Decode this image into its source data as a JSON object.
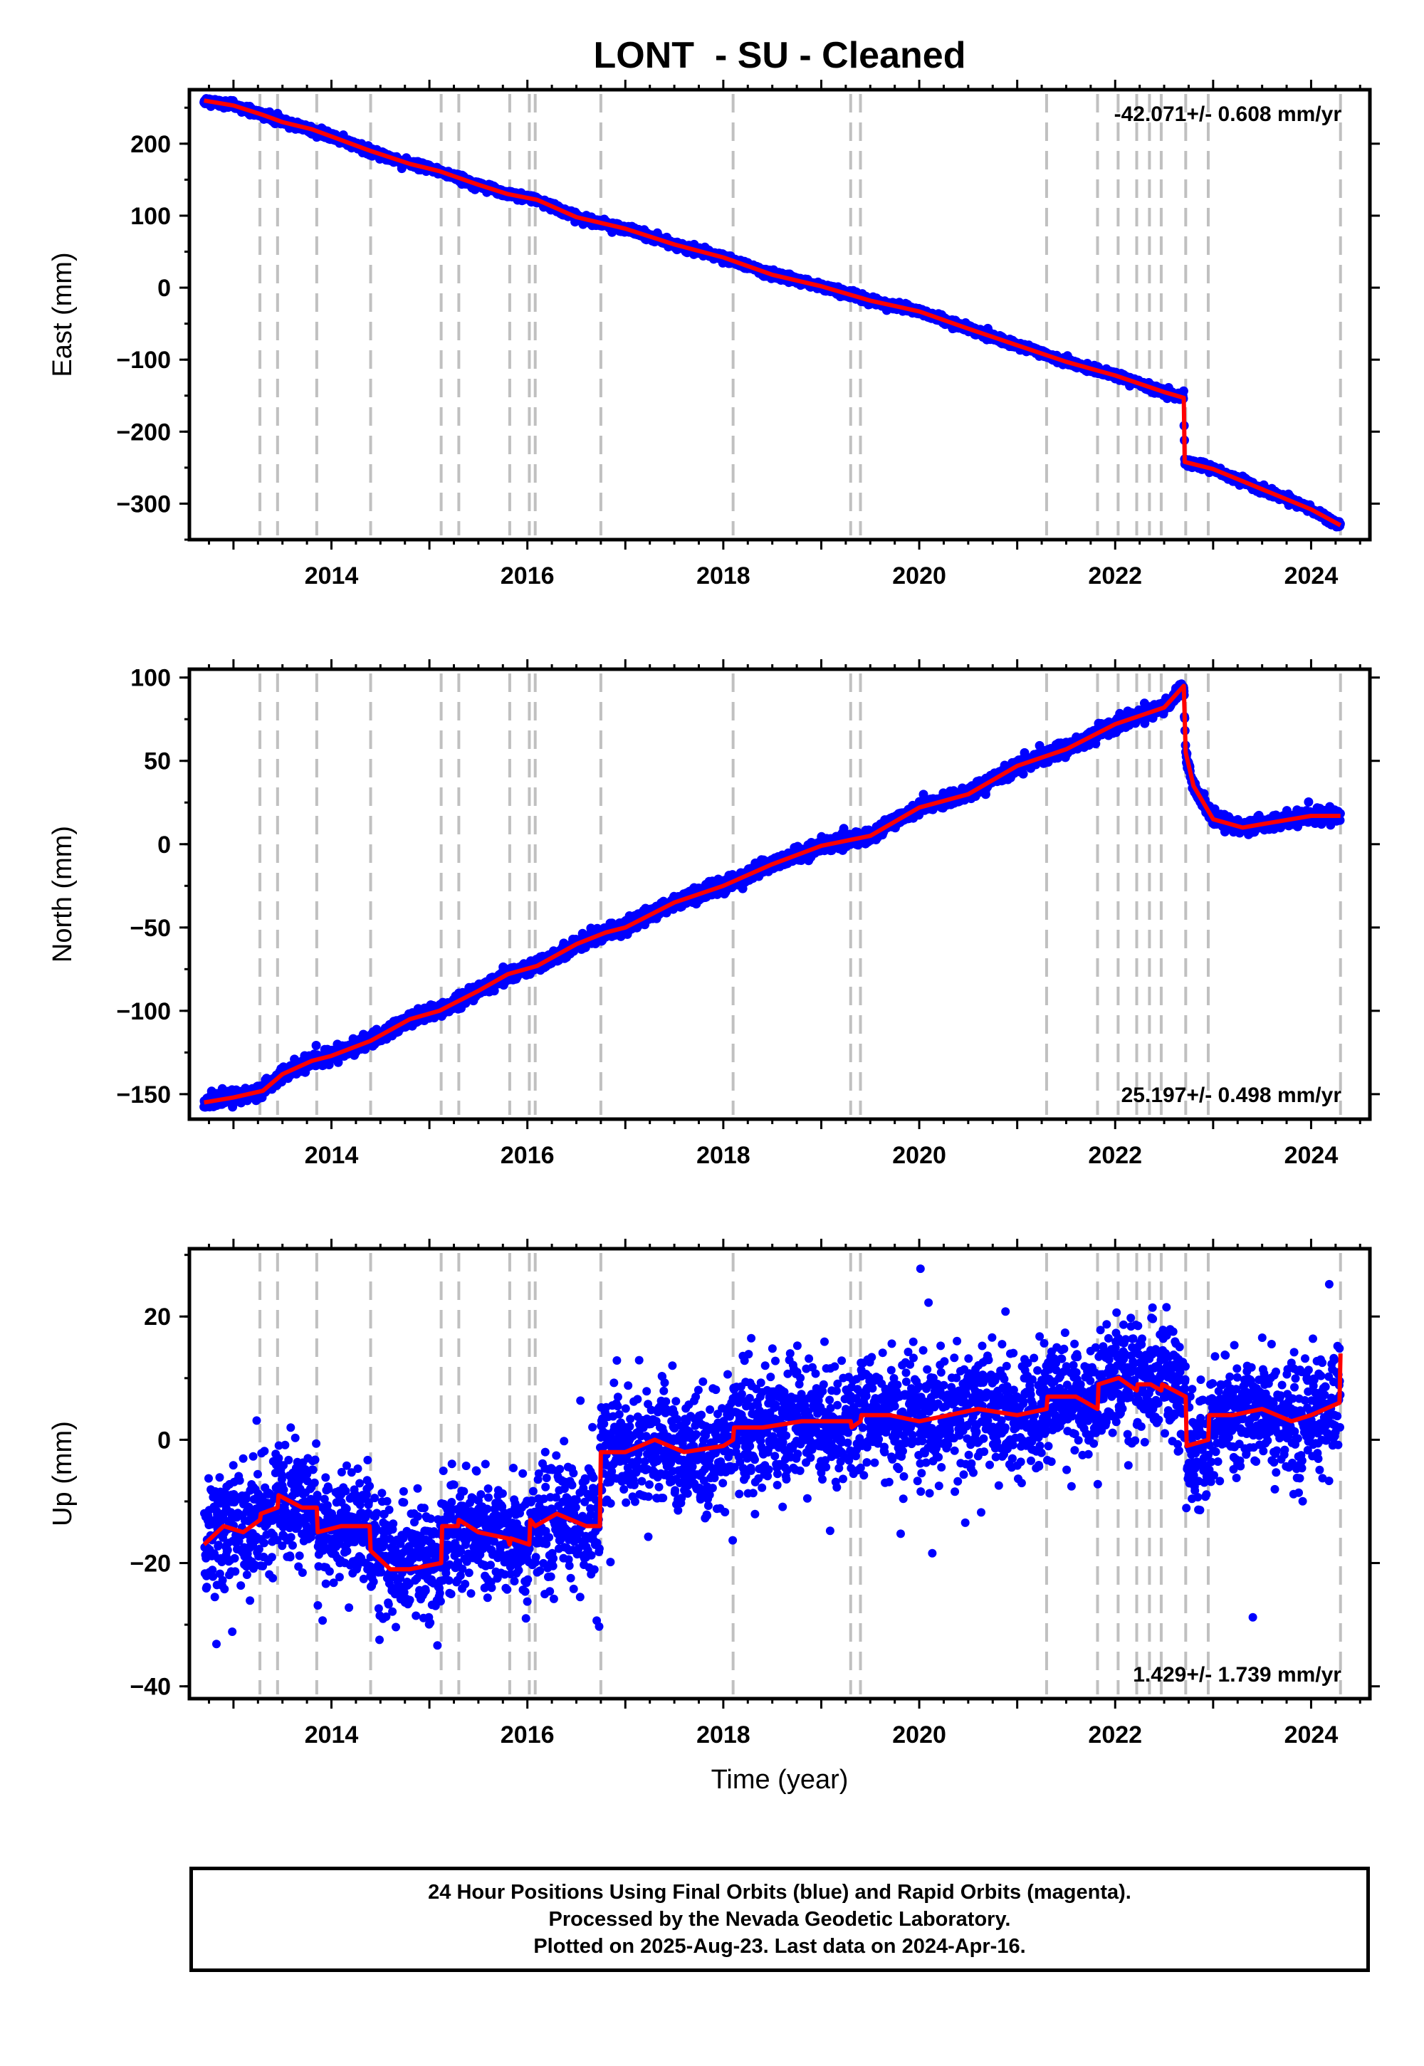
{
  "page": {
    "title": "LONT  - SU - Cleaned",
    "footer": [
      "24 Hour Positions Using Final Orbits (blue) and Rapid Orbits (magenta).",
      "Processed by the Nevada Geodetic Laboratory.",
      "Plotted on 2025-Aug-23. Last data on 2024-Apr-16."
    ]
  },
  "colors": {
    "data_points": "#0000ff",
    "model_line": "#ff0000",
    "event_lines": "#c0c0c0",
    "frame": "#000000"
  },
  "chart_data": [
    {
      "type": "scatter",
      "title": "LONT  - SU - Cleaned",
      "xlabel": "",
      "ylabel": "East (mm)",
      "xlim": [
        2012.55,
        2024.6
      ],
      "ylim": [
        -350,
        275
      ],
      "x_ticks": [
        2014,
        2016,
        2018,
        2020,
        2022,
        2024
      ],
      "y_ticks": [
        200,
        100,
        0,
        -100,
        -200,
        -300
      ],
      "y_tick_labels": [
        "200",
        "100",
        "0",
        "−100",
        "−200",
        "−300"
      ],
      "rate_label": "-42.071+/- 0.608 mm/yr",
      "rate_position": "top-right",
      "event_lines_x": [
        2013.27,
        2013.45,
        2013.85,
        2014.4,
        2015.12,
        2015.3,
        2015.82,
        2016.02,
        2016.08,
        2016.75,
        2018.1,
        2019.3,
        2019.4,
        2021.3,
        2021.82,
        2022.03,
        2022.22,
        2022.35,
        2022.47,
        2022.72,
        2022.95,
        2024.3
      ],
      "series": [
        {
          "kind": "daily_positions",
          "noise_mm": 2.5,
          "x": [
            2012.7,
            2013.0,
            2013.3,
            2013.5,
            2013.8,
            2014.0,
            2014.4,
            2014.8,
            2015.1,
            2015.5,
            2015.8,
            2016.1,
            2016.5,
            2017.0,
            2017.5,
            2018.0,
            2018.5,
            2019.0,
            2019.5,
            2020.0,
            2020.5,
            2021.0,
            2021.5,
            2022.0,
            2022.5,
            2022.7,
            2022.71,
            2023.0,
            2023.5,
            2024.0,
            2024.3
          ],
          "y": [
            260,
            253,
            240,
            230,
            220,
            210,
            190,
            172,
            162,
            143,
            130,
            122,
            98,
            82,
            60,
            42,
            18,
            2,
            -18,
            -33,
            -57,
            -80,
            -103,
            -122,
            -145,
            -153,
            -242,
            -252,
            -280,
            -308,
            -330
          ]
        },
        {
          "kind": "model",
          "x": [
            2012.7,
            2013.0,
            2013.3,
            2013.5,
            2013.8,
            2014.0,
            2014.4,
            2014.8,
            2015.1,
            2015.5,
            2015.8,
            2016.1,
            2016.5,
            2017.0,
            2017.5,
            2018.0,
            2018.5,
            2019.0,
            2019.5,
            2020.0,
            2020.5,
            2021.0,
            2021.5,
            2022.0,
            2022.5,
            2022.7,
            2022.71,
            2023.0,
            2023.5,
            2024.0,
            2024.3
          ],
          "y": [
            260,
            253,
            240,
            230,
            220,
            210,
            190,
            172,
            162,
            143,
            130,
            122,
            98,
            82,
            60,
            42,
            18,
            2,
            -18,
            -33,
            -57,
            -80,
            -103,
            -122,
            -145,
            -153,
            -242,
            -252,
            -280,
            -308,
            -330
          ]
        }
      ]
    },
    {
      "type": "scatter",
      "xlabel": "",
      "ylabel": "North (mm)",
      "xlim": [
        2012.55,
        2024.6
      ],
      "ylim": [
        -165,
        105
      ],
      "x_ticks": [
        2014,
        2016,
        2018,
        2020,
        2022,
        2024
      ],
      "y_ticks": [
        100,
        50,
        0,
        -50,
        -100,
        -150
      ],
      "y_tick_labels": [
        "100",
        "50",
        "0",
        "−50",
        "−100",
        "−150"
      ],
      "rate_label": "25.197+/- 0.498 mm/yr",
      "rate_position": "bottom-right",
      "event_lines_x": [
        2013.27,
        2013.45,
        2013.85,
        2014.4,
        2015.12,
        2015.3,
        2015.82,
        2016.02,
        2016.08,
        2016.75,
        2018.1,
        2019.3,
        2019.4,
        2021.3,
        2021.82,
        2022.03,
        2022.22,
        2022.35,
        2022.47,
        2022.72,
        2022.95,
        2024.3
      ],
      "series": [
        {
          "kind": "daily_positions",
          "noise_mm": 2.0,
          "x": [
            2012.7,
            2013.0,
            2013.3,
            2013.5,
            2013.8,
            2014.0,
            2014.4,
            2014.8,
            2015.1,
            2015.5,
            2015.8,
            2016.1,
            2016.5,
            2016.8,
            2017.0,
            2017.5,
            2018.0,
            2018.5,
            2019.0,
            2019.5,
            2020.0,
            2020.5,
            2021.0,
            2021.5,
            2022.0,
            2022.5,
            2022.7,
            2022.72,
            2022.8,
            2023.0,
            2023.3,
            2023.6,
            2024.0,
            2024.3
          ],
          "y": [
            -155,
            -152,
            -148,
            -138,
            -130,
            -127,
            -118,
            -105,
            -100,
            -88,
            -78,
            -73,
            -60,
            -53,
            -50,
            -35,
            -25,
            -12,
            -1,
            5,
            22,
            30,
            47,
            57,
            72,
            82,
            95,
            55,
            35,
            15,
            10,
            13,
            17,
            17
          ]
        },
        {
          "kind": "model",
          "x": [
            2012.7,
            2013.0,
            2013.3,
            2013.5,
            2013.8,
            2014.0,
            2014.4,
            2014.8,
            2015.1,
            2015.5,
            2015.8,
            2016.1,
            2016.5,
            2016.8,
            2017.0,
            2017.5,
            2018.0,
            2018.5,
            2019.0,
            2019.5,
            2020.0,
            2020.5,
            2021.0,
            2021.5,
            2022.0,
            2022.5,
            2022.7,
            2022.72,
            2022.8,
            2023.0,
            2023.3,
            2023.6,
            2024.0,
            2024.3
          ],
          "y": [
            -155,
            -152,
            -148,
            -138,
            -130,
            -127,
            -118,
            -105,
            -100,
            -88,
            -78,
            -73,
            -60,
            -53,
            -50,
            -35,
            -25,
            -12,
            -1,
            5,
            22,
            30,
            47,
            57,
            72,
            82,
            95,
            55,
            35,
            15,
            10,
            13,
            17,
            17
          ]
        }
      ]
    },
    {
      "type": "scatter",
      "xlabel": "Time (year)",
      "ylabel": "Up (mm)",
      "xlim": [
        2012.55,
        2024.6
      ],
      "ylim": [
        -42,
        31
      ],
      "x_ticks": [
        2014,
        2016,
        2018,
        2020,
        2022,
        2024
      ],
      "y_ticks": [
        20,
        0,
        -20,
        -40
      ],
      "y_tick_labels": [
        "20",
        "0",
        "−20",
        "−40"
      ],
      "rate_label": "1.429+/- 1.739 mm/yr",
      "rate_position": "bottom-right",
      "event_lines_x": [
        2013.27,
        2013.45,
        2013.85,
        2014.4,
        2015.12,
        2015.3,
        2015.82,
        2016.02,
        2016.08,
        2016.75,
        2018.1,
        2019.3,
        2019.4,
        2021.3,
        2021.82,
        2022.03,
        2022.22,
        2022.35,
        2022.47,
        2022.72,
        2022.95,
        2024.3
      ],
      "series": [
        {
          "kind": "daily_positions",
          "noise_mm": 4.5,
          "x": [
            2012.7,
            2012.9,
            2013.1,
            2013.27,
            2013.28,
            2013.45,
            2013.46,
            2013.7,
            2013.85,
            2013.86,
            2014.1,
            2014.39,
            2014.4,
            2014.6,
            2014.8,
            2015.12,
            2015.13,
            2015.29,
            2015.3,
            2015.5,
            2015.8,
            2015.82,
            2015.83,
            2016.02,
            2016.03,
            2016.08,
            2016.3,
            2016.6,
            2016.74,
            2016.75,
            2017.0,
            2017.3,
            2017.6,
            2018.0,
            2018.1,
            2018.11,
            2018.4,
            2018.8,
            2019.3,
            2019.31,
            2019.4,
            2019.41,
            2019.7,
            2020.0,
            2020.3,
            2020.6,
            2021.0,
            2021.3,
            2021.31,
            2021.6,
            2021.82,
            2021.83,
            2022.03,
            2022.04,
            2022.22,
            2022.23,
            2022.35,
            2022.36,
            2022.47,
            2022.48,
            2022.72,
            2022.73,
            2022.95,
            2022.96,
            2023.2,
            2023.5,
            2023.8,
            2024.0,
            2024.29,
            2024.3
          ],
          "y": [
            -17,
            -14,
            -15,
            -13,
            -12,
            -11,
            -9,
            -11,
            -11,
            -15,
            -14,
            -14,
            -18,
            -21,
            -21,
            -20,
            -14,
            -14,
            -13,
            -15,
            -16,
            -17,
            -16,
            -17,
            -13,
            -14,
            -12,
            -14,
            -14,
            -2,
            -2,
            0,
            -2,
            -1,
            0,
            2,
            2,
            3,
            3,
            2,
            3,
            4,
            4,
            3,
            4,
            5,
            4,
            5,
            7,
            7,
            5,
            9,
            10,
            10,
            8,
            9,
            9,
            9,
            8,
            9,
            7,
            -1,
            0,
            4,
            4,
            5,
            3,
            4,
            6,
            14
          ]
        },
        {
          "kind": "model",
          "x": [
            2012.7,
            2012.9,
            2013.1,
            2013.27,
            2013.28,
            2013.45,
            2013.46,
            2013.7,
            2013.85,
            2013.86,
            2014.1,
            2014.39,
            2014.4,
            2014.6,
            2014.8,
            2015.12,
            2015.13,
            2015.29,
            2015.3,
            2015.5,
            2015.8,
            2015.82,
            2015.83,
            2016.02,
            2016.03,
            2016.08,
            2016.3,
            2016.6,
            2016.74,
            2016.75,
            2017.0,
            2017.3,
            2017.6,
            2018.0,
            2018.1,
            2018.11,
            2018.4,
            2018.8,
            2019.3,
            2019.31,
            2019.4,
            2019.41,
            2019.7,
            2020.0,
            2020.3,
            2020.6,
            2021.0,
            2021.3,
            2021.31,
            2021.6,
            2021.82,
            2021.83,
            2022.03,
            2022.04,
            2022.22,
            2022.23,
            2022.35,
            2022.36,
            2022.47,
            2022.48,
            2022.72,
            2022.73,
            2022.95,
            2022.96,
            2023.2,
            2023.5,
            2023.8,
            2024.0,
            2024.29,
            2024.3
          ],
          "y": [
            -17,
            -14,
            -15,
            -13,
            -12,
            -11,
            -9,
            -11,
            -11,
            -15,
            -14,
            -14,
            -18,
            -21,
            -21,
            -20,
            -14,
            -14,
            -13,
            -15,
            -16,
            -17,
            -16,
            -17,
            -13,
            -14,
            -12,
            -14,
            -14,
            -2,
            -2,
            0,
            -2,
            -1,
            0,
            2,
            2,
            3,
            3,
            2,
            3,
            4,
            4,
            3,
            4,
            5,
            4,
            5,
            7,
            7,
            5,
            9,
            10,
            10,
            8,
            9,
            9,
            9,
            8,
            9,
            7,
            -1,
            0,
            4,
            4,
            5,
            3,
            4,
            6,
            14
          ]
        }
      ]
    }
  ]
}
